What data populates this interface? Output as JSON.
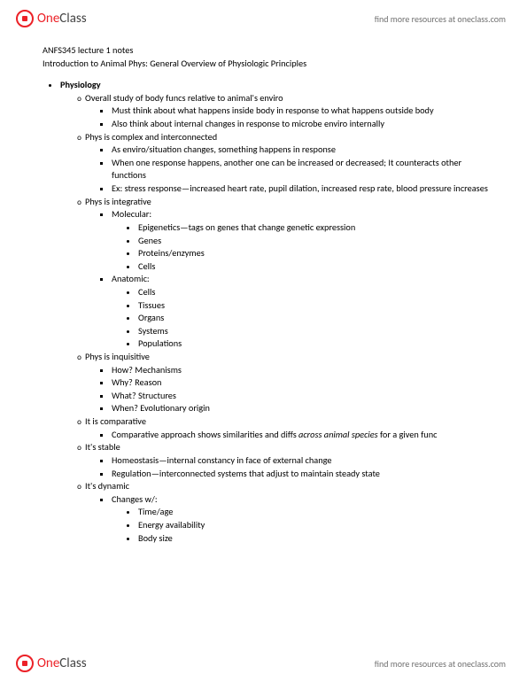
{
  "brand": {
    "one": "One",
    "class": "Class"
  },
  "resources_link": "find more resources at oneclass.com",
  "doc": {
    "title": "ANFS345 lecture 1 notes",
    "subtitle": "Introduction to Animal Phys: General Overview of Physiologic Principles",
    "h1": "Physiology",
    "s1": {
      "head": "Overall study of body funcs relative to animal's enviro",
      "b1": "Must think about what happens inside body in response to what happens outside body",
      "b2": "Also think about internal changes in response to microbe enviro internally"
    },
    "s2": {
      "head": "Phys is complex and interconnected",
      "b1": "As enviro/situation changes, something happens in response",
      "b2": "When one response happens, another one can be increased or decreased; It counteracts other functions",
      "b3": "Ex: stress response—increased heart rate, pupil dilation, increased resp rate, blood pressure increases"
    },
    "s3": {
      "head": "Phys is integrative",
      "mol": "Molecular:",
      "mol_b1": "Epigenetics—tags on genes that change genetic expression",
      "mol_b2": "Genes",
      "mol_b3": "Proteins/enzymes",
      "mol_b4": "Cells",
      "ana": "Anatomic:",
      "ana_b1": "Cells",
      "ana_b2": "Tissues",
      "ana_b3": "Organs",
      "ana_b4": "Systems",
      "ana_b5": "Populations"
    },
    "s4": {
      "head": "Phys is inquisitive",
      "b1": "How? Mechanisms",
      "b2": "Why? Reason",
      "b3": "What? Structures",
      "b4": "When? Evolutionary origin"
    },
    "s5": {
      "head": "It is comparative",
      "b1a": "Comparative approach shows similarities and diffs ",
      "b1i": "across animal species",
      "b1b": " for a given func"
    },
    "s6": {
      "head": "It's stable",
      "b1": "Homeostasis—internal constancy in face of external change",
      "b2": "Regulation—interconnected systems that adjust to maintain steady state"
    },
    "s7": {
      "head": "It's dynamic",
      "b1": "Changes w/:",
      "c1": "Time/age",
      "c2": "Energy availability",
      "c3": "Body size"
    }
  }
}
